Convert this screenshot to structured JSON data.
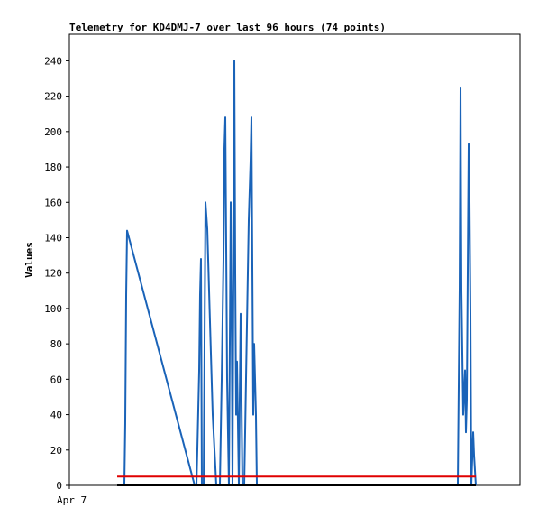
{
  "chart_data": {
    "type": "line",
    "title": "Telemetry for KD4DMJ-7 over last 96 hours (74 points)",
    "y_label": "Values",
    "xlim": [
      0,
      96
    ],
    "xticks": [
      {
        "value": 0,
        "label": "Apr 7"
      }
    ],
    "ylim": [
      0,
      255
    ],
    "yticks": [
      0,
      20,
      40,
      60,
      80,
      100,
      120,
      140,
      160,
      180,
      200,
      220,
      240
    ],
    "series": [
      {
        "color": "#1a63b8",
        "x": [
          10.18,
          11.71,
          11.9,
          12.1,
          12.29,
          26.69,
          27.07,
          27.26,
          27.65,
          27.84,
          28.03,
          28.22,
          28.61,
          28.99,
          29.38,
          29.76,
          30.14,
          30.53,
          31.3,
          32.06,
          32.45,
          32.83,
          33.02,
          33.22,
          33.6,
          33.98,
          34.37,
          34.56,
          34.75,
          35.14,
          35.33,
          35.52,
          35.71,
          36.1,
          36.48,
          36.86,
          37.25,
          37.63,
          38.21,
          38.59,
          38.78,
          39.17,
          39.36,
          39.74,
          39.94,
          82.75,
          83.14,
          83.33,
          83.52,
          83.9,
          84.29,
          84.48,
          84.67,
          85.06,
          85.25,
          85.44,
          85.63,
          86.02,
          86.21,
          86.59
        ],
        "values": [
          0,
          0,
          35,
          108,
          144,
          0,
          0,
          20,
          65,
          108,
          128,
          0,
          0,
          160,
          145,
          110,
          75,
          40,
          0,
          0,
          60,
          128,
          190,
          208,
          60,
          0,
          160,
          100,
          0,
          240,
          120,
          40,
          70,
          0,
          97,
          0,
          0,
          60,
          150,
          183,
          208,
          40,
          80,
          40,
          0,
          0,
          112,
          225,
          110,
          40,
          65,
          30,
          48,
          193,
          160,
          97,
          0,
          30,
          17,
          0
        ]
      },
      {
        "color": "#e00000",
        "x": [
          10.18,
          86.59
        ],
        "values": [
          5,
          5
        ]
      },
      {
        "color": "#000000",
        "x": [
          10.18,
          86.59
        ],
        "values": [
          0,
          0
        ]
      }
    ]
  }
}
